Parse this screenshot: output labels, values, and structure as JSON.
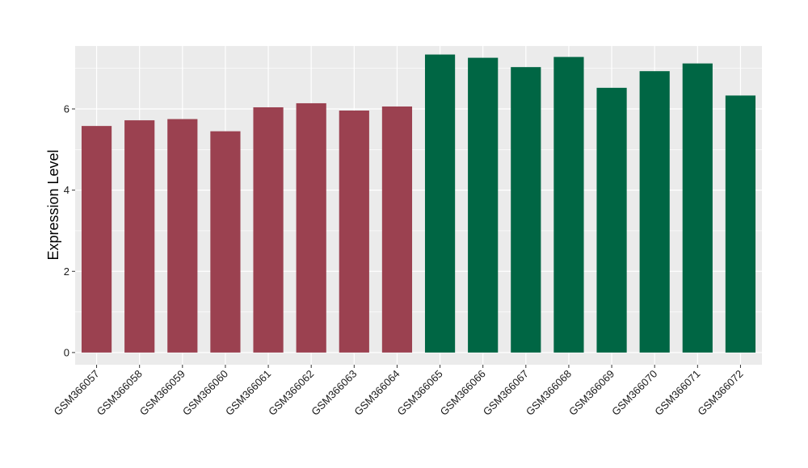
{
  "chart_data": {
    "type": "bar",
    "ylabel": "Expression Level",
    "xlabel": "",
    "title": "",
    "ylim": [
      -0.3,
      7.55
    ],
    "yticks": [
      0,
      2,
      4,
      6
    ],
    "grid": true,
    "categories": [
      "GSM366057",
      "GSM366058",
      "GSM366059",
      "GSM366060",
      "GSM366061",
      "GSM366062",
      "GSM366063",
      "GSM366064",
      "GSM366065",
      "GSM366066",
      "GSM366067",
      "GSM366068",
      "GSM366069",
      "GSM366070",
      "GSM366071",
      "GSM366072"
    ],
    "values": [
      5.58,
      5.72,
      5.75,
      5.45,
      6.04,
      6.14,
      5.96,
      6.06,
      7.34,
      7.26,
      7.03,
      7.28,
      6.52,
      6.93,
      7.12,
      6.33
    ],
    "bar_colors": [
      "#9b4150",
      "#9b4150",
      "#9b4150",
      "#9b4150",
      "#9b4150",
      "#9b4150",
      "#9b4150",
      "#9b4150",
      "#006644",
      "#006644",
      "#006644",
      "#006644",
      "#006644",
      "#006644",
      "#006644",
      "#006644"
    ],
    "panel_background": "#ebebeb",
    "gridline_color": "#ffffff"
  }
}
